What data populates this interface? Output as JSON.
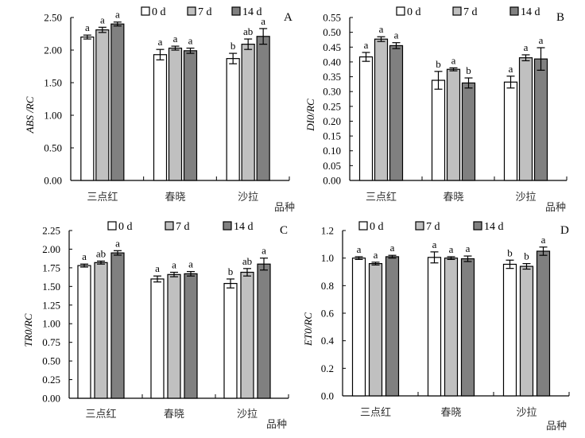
{
  "chart_data": [
    {
      "type": "bar",
      "panel": "A",
      "ylabel": "ABS /RC",
      "xlabel": "品种",
      "categories": [
        "三点红",
        "春晓",
        "沙拉"
      ],
      "ylim": [
        0,
        2.5
      ],
      "yticks": [
        "0.00",
        "0.50",
        "1.00",
        "1.50",
        "2.00",
        "2.50"
      ],
      "ytick_values": [
        0,
        0.5,
        1.0,
        1.5,
        2.0,
        2.5
      ],
      "legend_position": "top",
      "series": [
        {
          "name": "0 d",
          "color": "#ffffff",
          "values": [
            2.2,
            1.93,
            1.87
          ],
          "errors": [
            0.03,
            0.08,
            0.08
          ],
          "labels": [
            "a",
            "a",
            "b"
          ]
        },
        {
          "name": "7 d",
          "color": "#c0c0c0",
          "values": [
            2.31,
            2.03,
            2.09
          ],
          "errors": [
            0.04,
            0.03,
            0.08
          ],
          "labels": [
            "a",
            "a",
            "ab"
          ]
        },
        {
          "name": "14 d",
          "color": "#808080",
          "values": [
            2.4,
            1.99,
            2.21
          ],
          "errors": [
            0.03,
            0.04,
            0.12
          ],
          "labels": [
            "a",
            "a",
            "a"
          ]
        }
      ]
    },
    {
      "type": "bar",
      "panel": "B",
      "ylabel": "DI0/RC",
      "xlabel": "品种",
      "categories": [
        "三点红",
        "春晓",
        "沙拉"
      ],
      "ylim": [
        0,
        0.55
      ],
      "yticks": [
        "0.00",
        "0.05",
        "0.10",
        "0.15",
        "0.20",
        "0.25",
        "0.30",
        "0.35",
        "0.40",
        "0.45",
        "0.50",
        "0.55"
      ],
      "ytick_values": [
        0,
        0.05,
        0.1,
        0.15,
        0.2,
        0.25,
        0.3,
        0.35,
        0.4,
        0.45,
        0.5,
        0.55
      ],
      "legend_position": "top",
      "series": [
        {
          "name": "0 d",
          "color": "#ffffff",
          "values": [
            0.417,
            0.338,
            0.332
          ],
          "errors": [
            0.015,
            0.03,
            0.02
          ],
          "labels": [
            "a",
            "b",
            "a"
          ]
        },
        {
          "name": "7 d",
          "color": "#c0c0c0",
          "values": [
            0.477,
            0.375,
            0.414
          ],
          "errors": [
            0.008,
            0.005,
            0.01
          ],
          "labels": [
            "a",
            "a",
            "a"
          ]
        },
        {
          "name": "14 d",
          "color": "#808080",
          "values": [
            0.455,
            0.329,
            0.41
          ],
          "errors": [
            0.01,
            0.017,
            0.038
          ],
          "labels": [
            "a",
            "b",
            "a"
          ]
        }
      ]
    },
    {
      "type": "bar",
      "panel": "C",
      "ylabel": "TR0/RC",
      "xlabel": "品种",
      "categories": [
        "三点红",
        "春晓",
        "沙拉"
      ],
      "ylim": [
        0,
        2.25
      ],
      "yticks": [
        "0.00",
        "0.25",
        "0.50",
        "0.75",
        "1.00",
        "1.25",
        "1.50",
        "1.75",
        "2.00",
        "2.25"
      ],
      "ytick_values": [
        0,
        0.25,
        0.5,
        0.75,
        1.0,
        1.25,
        1.5,
        1.75,
        2.0,
        2.25
      ],
      "legend_position": "top",
      "series": [
        {
          "name": "0 d",
          "color": "#ffffff",
          "values": [
            1.78,
            1.6,
            1.54
          ],
          "errors": [
            0.02,
            0.04,
            0.06
          ],
          "labels": [
            "a",
            "a",
            "b"
          ]
        },
        {
          "name": "7 d",
          "color": "#c0c0c0",
          "values": [
            1.82,
            1.66,
            1.69
          ],
          "errors": [
            0.02,
            0.03,
            0.05
          ],
          "labels": [
            "ab",
            "a",
            "ab"
          ]
        },
        {
          "name": "14 d",
          "color": "#808080",
          "values": [
            1.95,
            1.67,
            1.8
          ],
          "errors": [
            0.03,
            0.03,
            0.08
          ],
          "labels": [
            "a",
            "a",
            "a"
          ]
        }
      ]
    },
    {
      "type": "bar",
      "panel": "D",
      "ylabel": "ET0/RC",
      "xlabel": "品种",
      "categories": [
        "三点红",
        "春晓",
        "沙拉"
      ],
      "ylim": [
        0,
        1.2
      ],
      "yticks": [
        "0.0",
        "0.2",
        "0.4",
        "0.6",
        "0.8",
        "1.0",
        "1.2"
      ],
      "ytick_values": [
        0,
        0.2,
        0.4,
        0.6,
        0.8,
        1.0,
        1.2
      ],
      "legend_position": "top",
      "series": [
        {
          "name": "0 d",
          "color": "#ffffff",
          "values": [
            1.0,
            1.005,
            0.955
          ],
          "errors": [
            0.01,
            0.04,
            0.03
          ],
          "labels": [
            "a",
            "a",
            "b"
          ]
        },
        {
          "name": "7 d",
          "color": "#c0c0c0",
          "values": [
            0.96,
            1.0,
            0.94
          ],
          "errors": [
            0.01,
            0.01,
            0.02
          ],
          "labels": [
            "a",
            "a",
            "b"
          ]
        },
        {
          "name": "14 d",
          "color": "#808080",
          "values": [
            1.01,
            0.995,
            1.05
          ],
          "errors": [
            0.01,
            0.02,
            0.03
          ],
          "labels": [
            "a",
            "a",
            "a"
          ]
        }
      ]
    }
  ]
}
